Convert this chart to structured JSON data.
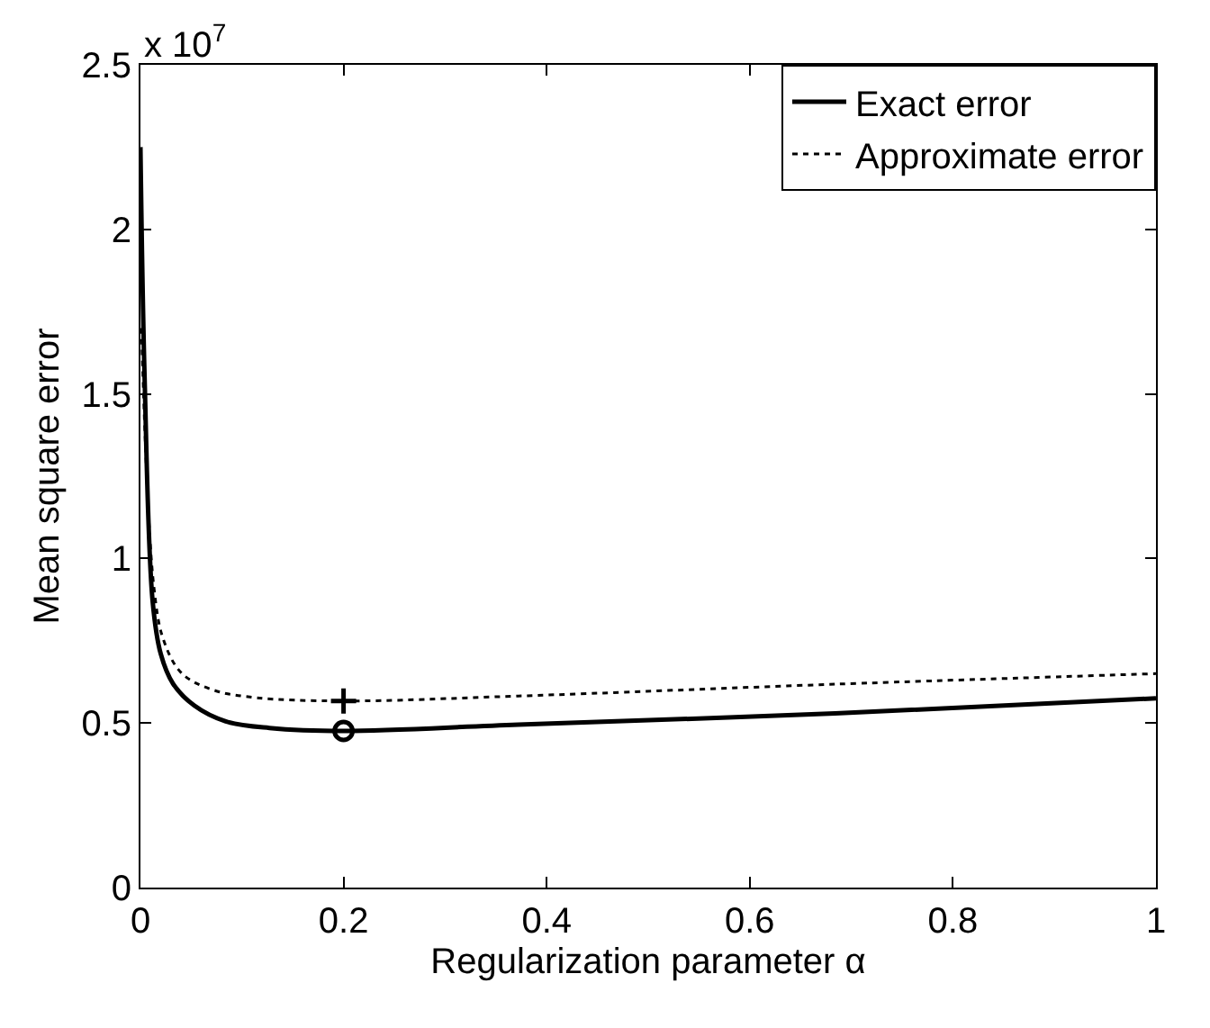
{
  "chart_data": {
    "type": "line",
    "xlabel": "Regularization parameter α",
    "ylabel": "Mean square error",
    "annotations": [
      "x 10$^{7}$"
    ],
    "xlim": [
      0,
      1
    ],
    "xticks": [
      0,
      0.2,
      0.4,
      0.6,
      0.8,
      1
    ],
    "ylim": [
      0,
      2.5
    ],
    "yticks": [
      0,
      0.5,
      1,
      1.5,
      2,
      2.5
    ],
    "grid": false,
    "legend": "top right",
    "series": [
      {
        "name": "Exact error",
        "color": "#000000",
        "line_style": "solid",
        "x": [
          0,
          0.004,
          0.012,
          0.02,
          0.032,
          0.053,
          0.084,
          0.127,
          0.2,
          0.372,
          0.684,
          1
        ],
        "values": [
          2.25,
          1.56,
          0.87,
          0.71,
          0.62,
          0.553,
          0.505,
          0.485,
          0.476,
          0.495,
          0.529,
          0.575
        ]
      },
      {
        "name": "Approximate error",
        "color": "#000000",
        "line_style": "dotted",
        "x": [
          0.001,
          0.013,
          0.023,
          0.041,
          0.072,
          0.114,
          0.2,
          0.372,
          0.684,
          1
        ],
        "values": [
          1.7,
          0.92,
          0.75,
          0.65,
          0.6,
          0.577,
          0.567,
          0.582,
          0.618,
          0.65
        ]
      },
      {
        "type": "scatter",
        "marker": "circle",
        "color": "#000000",
        "x": [
          0.2
        ],
        "values": [
          0.476
        ]
      },
      {
        "type": "scatter",
        "marker": "cross",
        "color": "#000000",
        "x": [
          0.2
        ],
        "values": [
          0.567
        ]
      }
    ]
  }
}
